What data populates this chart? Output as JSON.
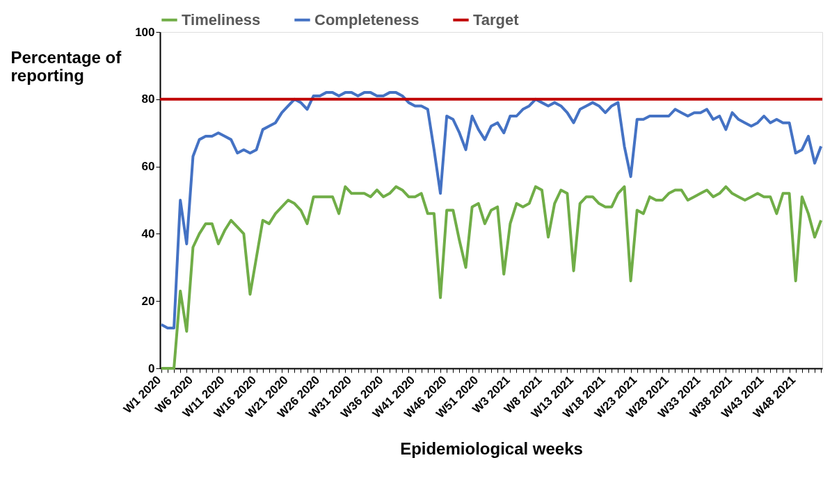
{
  "chart_data": {
    "type": "line",
    "xlabel": "Epidemiological  weeks",
    "ylabel": "Percentage of reporting",
    "categories": [
      "W1 2020",
      null,
      null,
      null,
      null,
      "W6 2020",
      null,
      null,
      null,
      null,
      "W11 2020",
      null,
      null,
      null,
      null,
      "W16 2020",
      null,
      null,
      null,
      null,
      "W21 2020",
      null,
      null,
      null,
      null,
      "W26 2020",
      null,
      null,
      null,
      null,
      "W31 2020",
      null,
      null,
      null,
      null,
      "W36 2020",
      null,
      null,
      null,
      null,
      "W41 2020",
      null,
      null,
      null,
      null,
      "W46 2020",
      null,
      null,
      null,
      null,
      "W51 2020",
      null,
      null,
      null,
      null,
      "W3 2021",
      null,
      null,
      null,
      null,
      "W8 2021",
      null,
      null,
      null,
      null,
      "W13 2021",
      null,
      null,
      null,
      null,
      "W18 2021",
      null,
      null,
      null,
      null,
      "W23 2021",
      null,
      null,
      null,
      null,
      "W28 2021",
      null,
      null,
      null,
      null,
      "W33 2021",
      null,
      null,
      null,
      null,
      "W38 2021",
      null,
      null,
      null,
      null,
      "W43 2021",
      null,
      null,
      null,
      null,
      "W48 2021",
      null,
      null,
      null,
      null
    ],
    "series": [
      {
        "name": "Timeliness",
        "color": "#70ad47",
        "values": [
          0,
          0,
          0,
          23,
          11,
          36,
          40,
          43,
          43,
          37,
          41,
          44,
          42,
          40,
          22,
          33,
          44,
          43,
          46,
          48,
          50,
          49,
          47,
          43,
          51,
          51,
          51,
          51,
          46,
          54,
          52,
          52,
          52,
          51,
          53,
          51,
          52,
          54,
          53,
          51,
          51,
          52,
          46,
          46,
          21,
          47,
          47,
          38,
          30,
          48,
          49,
          43,
          47,
          48,
          28,
          43,
          49,
          48,
          49,
          54,
          53,
          39,
          49,
          53,
          52,
          29,
          49,
          51,
          51,
          49,
          48,
          48,
          52,
          54,
          26,
          47,
          46,
          51,
          50,
          50,
          52,
          53,
          53,
          50,
          51,
          52,
          53,
          51,
          52,
          54,
          52,
          51,
          50,
          51,
          52,
          51,
          51,
          46,
          52,
          52,
          26,
          51,
          46,
          39,
          44
        ]
      },
      {
        "name": "Completeness",
        "color": "#4472c4",
        "values": [
          13,
          12,
          12,
          50,
          37,
          63,
          68,
          69,
          69,
          70,
          69,
          68,
          64,
          65,
          64,
          65,
          71,
          72,
          73,
          76,
          78,
          80,
          79,
          77,
          81,
          81,
          82,
          82,
          81,
          82,
          82,
          81,
          82,
          82,
          81,
          81,
          82,
          82,
          81,
          79,
          78,
          78,
          77,
          65,
          52,
          75,
          74,
          70,
          65,
          75,
          71,
          68,
          72,
          73,
          70,
          75,
          75,
          77,
          78,
          80,
          79,
          78,
          79,
          78,
          76,
          73,
          77,
          78,
          79,
          78,
          76,
          78,
          79,
          66,
          57,
          74,
          74,
          75,
          75,
          75,
          75,
          77,
          76,
          75,
          76,
          76,
          77,
          74,
          75,
          71,
          76,
          74,
          73,
          72,
          73,
          75,
          73,
          74,
          73,
          73,
          64,
          65,
          69,
          61,
          66
        ]
      }
    ],
    "ref_lines": [
      {
        "axis": "y",
        "value": 80,
        "label": "Target",
        "color": "#c00000"
      }
    ],
    "ylim": [
      0,
      100
    ],
    "yticks": [
      0,
      20,
      40,
      60,
      80,
      100
    ],
    "grid": false,
    "legend": "top",
    "marker": "none",
    "line_style": "solid"
  }
}
